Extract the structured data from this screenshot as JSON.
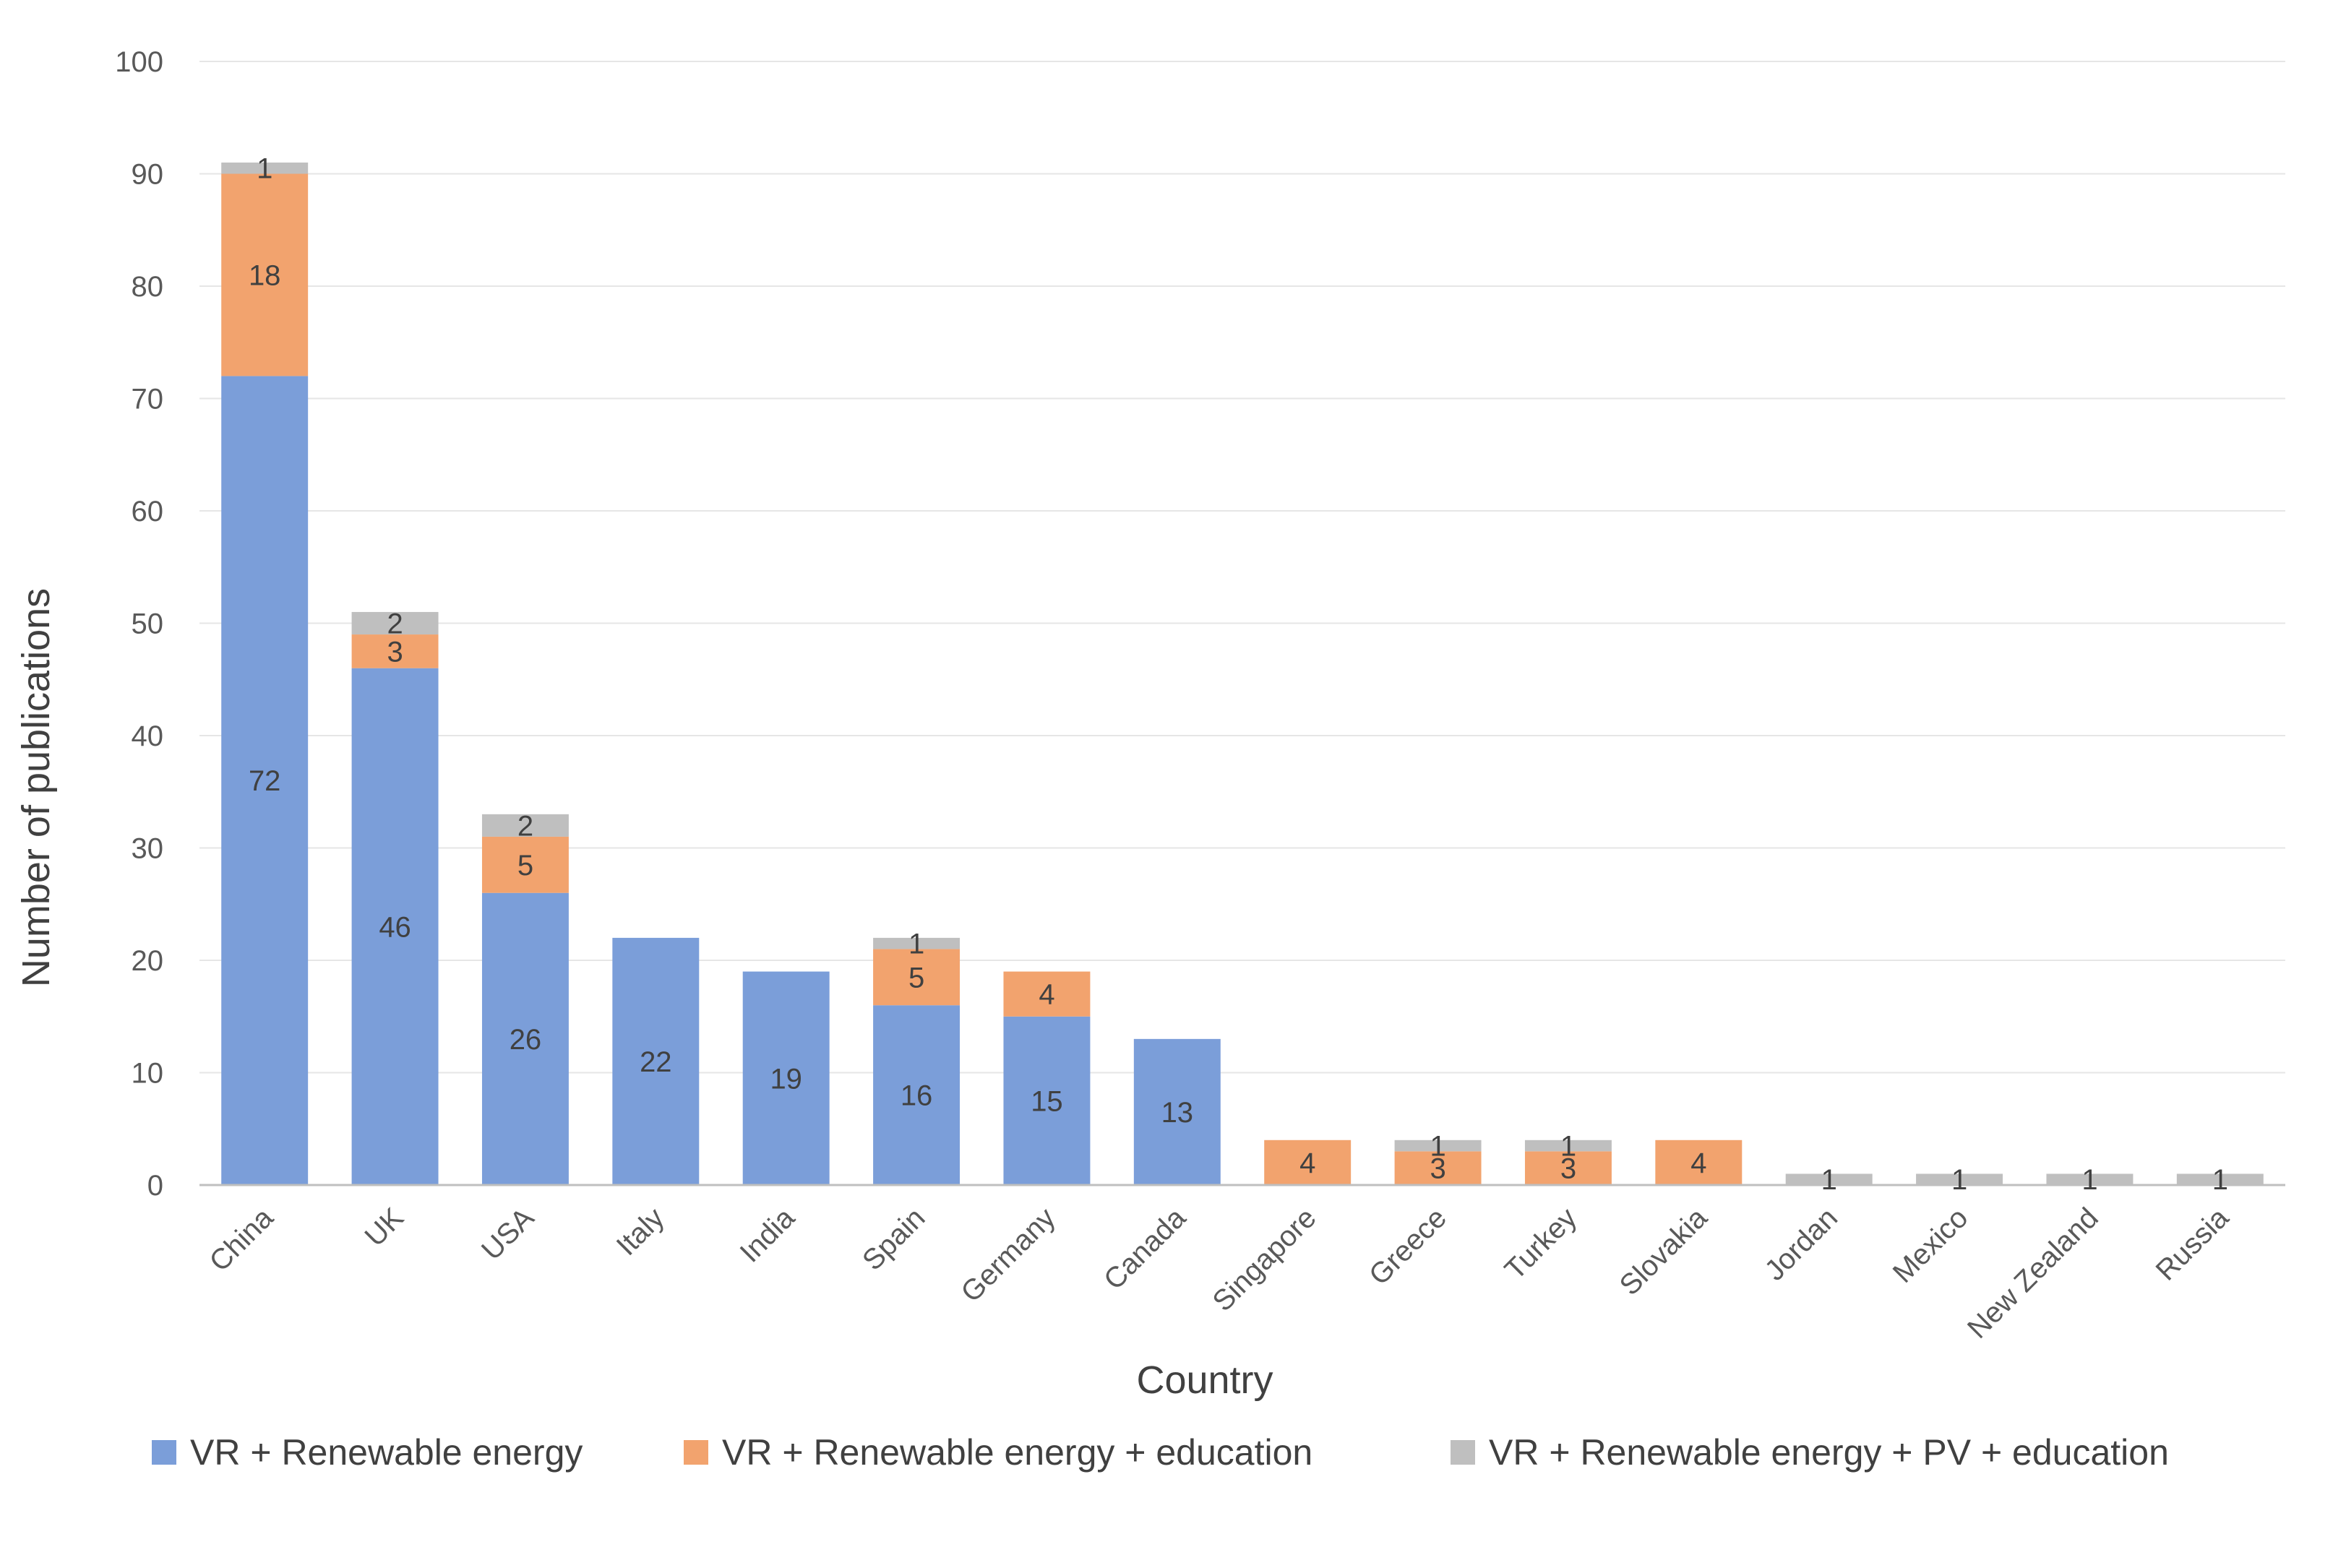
{
  "chart_data": {
    "type": "bar",
    "stacked": true,
    "xlabel": "Country",
    "ylabel": "Number of publications",
    "ylim": [
      0,
      100
    ],
    "yticks": [
      0,
      10,
      20,
      30,
      40,
      50,
      60,
      70,
      80,
      90,
      100
    ],
    "grid": true,
    "legend_position": "bottom",
    "categories": [
      "China",
      "UK",
      "USA",
      "Italy",
      "India",
      "Spain",
      "Germany",
      "Canada",
      "Singapore",
      "Greece",
      "Turkey",
      "Slovakia",
      "Jordan",
      "Mexico",
      "New Zealand",
      "Russia"
    ],
    "series": [
      {
        "name": "VR + Renewable energy",
        "color": "#7B9ED9",
        "values": [
          72,
          46,
          26,
          22,
          19,
          16,
          15,
          13,
          0,
          0,
          0,
          0,
          0,
          0,
          0,
          0
        ]
      },
      {
        "name": "VR + Renewable energy + education",
        "color": "#F2A36E",
        "values": [
          18,
          3,
          5,
          0,
          0,
          5,
          4,
          0,
          4,
          3,
          3,
          4,
          0,
          0,
          0,
          0
        ]
      },
      {
        "name": "VR + Renewable energy + PV + education",
        "color": "#BFBFBF",
        "values": [
          1,
          2,
          2,
          0,
          0,
          1,
          0,
          0,
          0,
          1,
          1,
          0,
          1,
          1,
          1,
          1
        ]
      }
    ]
  }
}
